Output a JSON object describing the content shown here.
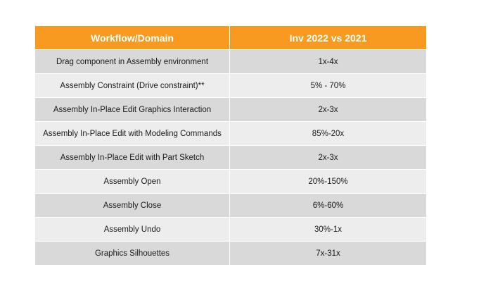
{
  "table": {
    "headers": [
      "Workflow/Domain",
      "Inv 2022 vs 2021"
    ],
    "rows": [
      [
        "Drag component in Assembly environment",
        "1x-4x"
      ],
      [
        "Assembly Constraint (Drive constraint)**",
        "5% - 70%"
      ],
      [
        "Assembly In-Place Edit Graphics Interaction",
        "2x-3x"
      ],
      [
        "Assembly In-Place Edit with Modeling Commands",
        "85%-20x"
      ],
      [
        "Assembly In-Place Edit with Part Sketch",
        "2x-3x"
      ],
      [
        "Assembly Open",
        "20%-150%"
      ],
      [
        "Assembly Close",
        "6%-60%"
      ],
      [
        "Assembly Undo",
        "30%-1x"
      ],
      [
        "Graphics Silhouettes",
        "7x-31x"
      ]
    ],
    "colors": {
      "header_bg": "#f79a1f",
      "header_text": "#ffffff",
      "row_odd": "#d9d9d9",
      "row_even": "#ededed"
    }
  }
}
